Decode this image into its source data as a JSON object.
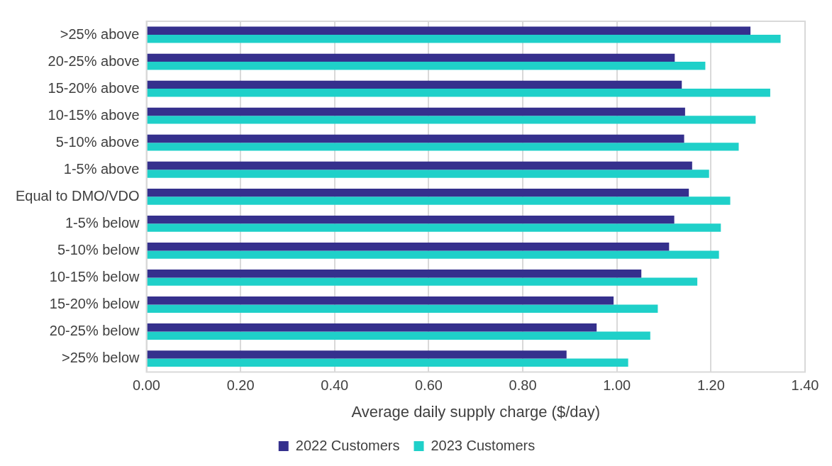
{
  "chart_data": {
    "type": "bar",
    "orientation": "horizontal",
    "xlabel": "Average daily supply charge ($/day)",
    "categories": [
      ">25% above",
      "20-25% above",
      "15-20% above",
      "10-15% above",
      "5-10% above",
      "1-5% above",
      "Equal to DMO/VDO",
      "1-5% below",
      "5-10% below",
      "10-15% below",
      "15-20% below",
      "20-25% below",
      ">25% below"
    ],
    "series": [
      {
        "name": "2022 Customers",
        "color": "#35308d",
        "values": [
          1.284,
          1.123,
          1.138,
          1.145,
          1.143,
          1.16,
          1.153,
          1.122,
          1.111,
          1.052,
          0.993,
          0.957,
          0.893
        ]
      },
      {
        "name": "2023 Customers",
        "color": "#1fd0c9",
        "values": [
          1.348,
          1.188,
          1.326,
          1.295,
          1.259,
          1.196,
          1.241,
          1.221,
          1.217,
          1.171,
          1.087,
          1.071,
          1.024
        ]
      }
    ],
    "xlim": [
      0,
      1.4
    ],
    "xticks": [
      {
        "value": 0,
        "label": "0.00"
      },
      {
        "value": 0.2,
        "label": "0.20"
      },
      {
        "value": 0.4,
        "label": "0.40"
      },
      {
        "value": 0.6,
        "label": "0.60"
      },
      {
        "value": 0.8,
        "label": "0.80"
      },
      {
        "value": 1,
        "label": "1.00"
      },
      {
        "value": 1.2,
        "label": "1.20"
      },
      {
        "value": 1.4,
        "label": "1.40"
      }
    ],
    "grid": "x",
    "legend": "bottom"
  }
}
